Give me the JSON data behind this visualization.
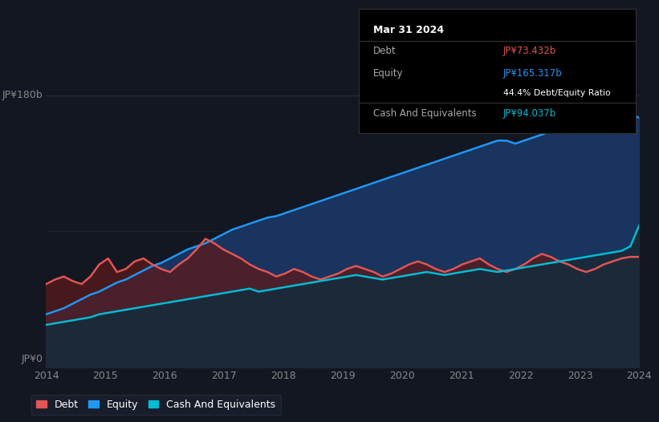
{
  "bg_color": "#131722",
  "plot_bg_color": "#131722",
  "ylabel_180": "JP¥180b",
  "ylabel_0": "JP¥0",
  "x_ticks": [
    "2014",
    "2015",
    "2016",
    "2017",
    "2018",
    "2019",
    "2020",
    "2021",
    "2022",
    "2023",
    "2024"
  ],
  "debt_color": "#e05555",
  "equity_color": "#2196f3",
  "cash_color": "#00bcd4",
  "grid_color": "#2a2e39",
  "tooltip_bg": "#000000",
  "tooltip_border": "#333333",
  "tooltip_title": "Mar 31 2024",
  "tooltip_debt_label": "Debt",
  "tooltip_debt_value": "JP¥73.432b",
  "tooltip_equity_label": "Equity",
  "tooltip_equity_value": "JP¥165.317b",
  "tooltip_ratio": "44.4% Debt/Equity Ratio",
  "tooltip_cash_label": "Cash And Equivalents",
  "tooltip_cash_value": "JP¥94.037b",
  "debt_data": [
    55,
    58,
    60,
    57,
    55,
    60,
    68,
    72,
    63,
    65,
    70,
    72,
    68,
    65,
    63,
    68,
    72,
    78,
    85,
    82,
    78,
    75,
    72,
    68,
    65,
    63,
    60,
    62,
    65,
    63,
    60,
    58,
    60,
    62,
    65,
    67,
    65,
    63,
    60,
    62,
    65,
    68,
    70,
    68,
    65,
    63,
    65,
    68,
    70,
    72,
    68,
    65,
    63,
    65,
    68,
    72,
    75,
    73,
    70,
    68,
    65,
    63,
    65,
    68,
    70,
    72,
    73,
    73
  ],
  "equity_data": [
    35,
    37,
    39,
    42,
    45,
    48,
    50,
    53,
    56,
    58,
    61,
    64,
    67,
    69,
    72,
    75,
    78,
    80,
    82,
    85,
    88,
    91,
    93,
    95,
    97,
    99,
    100,
    102,
    104,
    106,
    108,
    110,
    112,
    114,
    116,
    118,
    120,
    122,
    124,
    126,
    128,
    130,
    132,
    134,
    136,
    138,
    140,
    142,
    144,
    146,
    148,
    150,
    150,
    148,
    150,
    152,
    154,
    156,
    158,
    160,
    162,
    163,
    164,
    165,
    165,
    167,
    168,
    165
  ],
  "cash_data": [
    28,
    29,
    30,
    31,
    32,
    33,
    35,
    36,
    37,
    38,
    39,
    40,
    41,
    42,
    43,
    44,
    45,
    46,
    47,
    48,
    49,
    50,
    51,
    52,
    50,
    51,
    52,
    53,
    54,
    55,
    56,
    57,
    58,
    59,
    60,
    61,
    60,
    59,
    58,
    59,
    60,
    61,
    62,
    63,
    62,
    61,
    62,
    63,
    64,
    65,
    64,
    63,
    64,
    65,
    66,
    67,
    68,
    69,
    70,
    71,
    72,
    73,
    74,
    75,
    76,
    77,
    80,
    94
  ],
  "legend_items": [
    {
      "label": "Debt",
      "color": "#e05555"
    },
    {
      "label": "Equity",
      "color": "#2196f3"
    },
    {
      "label": "Cash And Equivalents",
      "color": "#00bcd4"
    }
  ]
}
